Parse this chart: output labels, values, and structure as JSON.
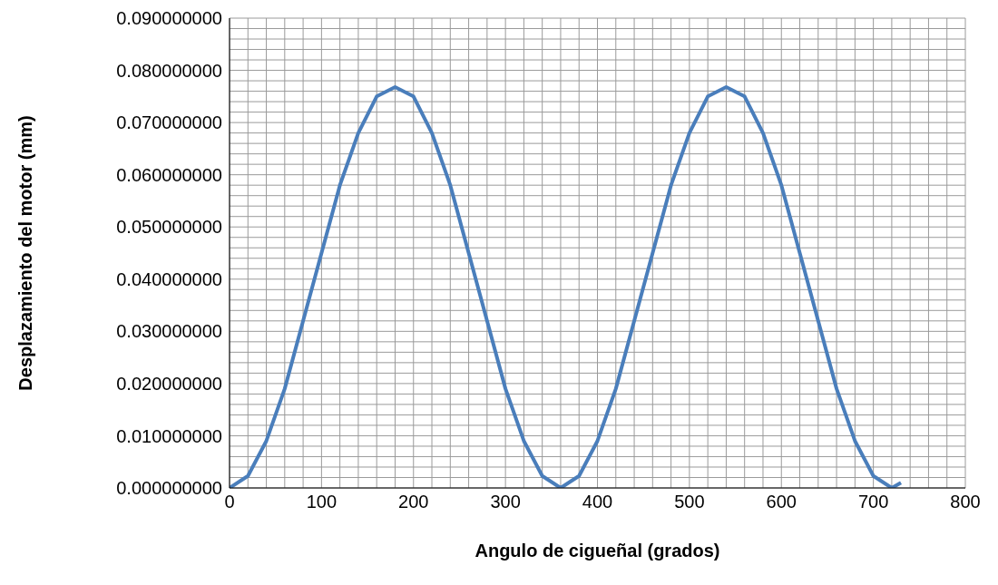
{
  "chart_data": {
    "type": "line",
    "xlabel": "Angulo de cigueñal (grados)",
    "ylabel": "Desplazamiento del motor (mm)",
    "x": [
      0,
      20,
      40,
      60,
      80,
      100,
      120,
      140,
      160,
      180,
      200,
      220,
      240,
      260,
      280,
      300,
      320,
      340,
      360,
      380,
      400,
      420,
      440,
      460,
      480,
      500,
      520,
      540,
      560,
      580,
      600,
      620,
      640,
      660,
      680,
      700,
      720,
      730
    ],
    "series": [
      {
        "color": "#4a7ebb",
        "values": [
          0,
          0.0023,
          0.009,
          0.019,
          0.032,
          0.045,
          0.058,
          0.068,
          0.075,
          0.0768,
          0.075,
          0.068,
          0.058,
          0.045,
          0.032,
          0.019,
          0.009,
          0.0023,
          0,
          0.0023,
          0.009,
          0.019,
          0.032,
          0.045,
          0.058,
          0.068,
          0.075,
          0.0768,
          0.075,
          0.068,
          0.058,
          0.045,
          0.032,
          0.019,
          0.009,
          0.0023,
          0,
          0.001
        ]
      }
    ],
    "xlim": [
      0,
      800
    ],
    "xticks": [
      0,
      {
        "value": 20,
        "label": null
      },
      {
        "value": 40,
        "label": null
      },
      {
        "value": 60,
        "label": null
      },
      {
        "value": 80,
        "label": null
      },
      100,
      {
        "value": 120,
        "label": null
      },
      {
        "value": 140,
        "label": null
      },
      {
        "value": 160,
        "label": null
      },
      {
        "value": 180,
        "label": null
      },
      200,
      {
        "value": 220,
        "label": null
      },
      {
        "value": 240,
        "label": null
      },
      {
        "value": 260,
        "label": null
      },
      {
        "value": 280,
        "label": null
      },
      300,
      {
        "value": 320,
        "label": null
      },
      {
        "value": 340,
        "label": null
      },
      {
        "value": 360,
        "label": null
      },
      {
        "value": 380,
        "label": null
      },
      400,
      {
        "value": 420,
        "label": null
      },
      {
        "value": 440,
        "label": null
      },
      {
        "value": 460,
        "label": null
      },
      {
        "value": 480,
        "label": null
      },
      500,
      {
        "value": 520,
        "label": null
      },
      {
        "value": 540,
        "label": null
      },
      {
        "value": 560,
        "label": null
      },
      {
        "value": 580,
        "label": null
      },
      600,
      {
        "value": 620,
        "label": null
      },
      {
        "value": 640,
        "label": null
      },
      {
        "value": 660,
        "label": null
      },
      {
        "value": 680,
        "label": null
      },
      700,
      {
        "value": 720,
        "label": null
      },
      {
        "value": 740,
        "label": null
      },
      {
        "value": 760,
        "label": null
      },
      {
        "value": 780,
        "label": null
      },
      800
    ],
    "ylim": [
      0,
      0.09
    ],
    "yticks": [
      {
        "value": 0,
        "label": "0.000000000"
      },
      {
        "value": 0.002,
        "label": null
      },
      {
        "value": 0.004,
        "label": null
      },
      {
        "value": 0.006,
        "label": null
      },
      {
        "value": 0.008,
        "label": null
      },
      {
        "value": 0.01,
        "label": "0.010000000"
      },
      {
        "value": 0.012,
        "label": null
      },
      {
        "value": 0.014,
        "label": null
      },
      {
        "value": 0.016,
        "label": null
      },
      {
        "value": 0.018,
        "label": null
      },
      {
        "value": 0.02,
        "label": "0.020000000"
      },
      {
        "value": 0.022,
        "label": null
      },
      {
        "value": 0.024,
        "label": null
      },
      {
        "value": 0.026,
        "label": null
      },
      {
        "value": 0.028,
        "label": null
      },
      {
        "value": 0.03,
        "label": "0.030000000"
      },
      {
        "value": 0.032,
        "label": null
      },
      {
        "value": 0.034,
        "label": null
      },
      {
        "value": 0.036,
        "label": null
      },
      {
        "value": 0.038,
        "label": null
      },
      {
        "value": 0.04,
        "label": "0.040000000"
      },
      {
        "value": 0.042,
        "label": null
      },
      {
        "value": 0.044,
        "label": null
      },
      {
        "value": 0.046,
        "label": null
      },
      {
        "value": 0.048,
        "label": null
      },
      {
        "value": 0.05,
        "label": "0.050000000"
      },
      {
        "value": 0.052,
        "label": null
      },
      {
        "value": 0.054,
        "label": null
      },
      {
        "value": 0.056,
        "label": null
      },
      {
        "value": 0.058,
        "label": null
      },
      {
        "value": 0.06,
        "label": "0.060000000"
      },
      {
        "value": 0.062,
        "label": null
      },
      {
        "value": 0.064,
        "label": null
      },
      {
        "value": 0.066,
        "label": null
      },
      {
        "value": 0.068,
        "label": null
      },
      {
        "value": 0.07,
        "label": "0.070000000"
      },
      {
        "value": 0.072,
        "label": null
      },
      {
        "value": 0.074,
        "label": null
      },
      {
        "value": 0.076,
        "label": null
      },
      {
        "value": 0.078,
        "label": null
      },
      {
        "value": 0.08,
        "label": "0.080000000"
      },
      {
        "value": 0.082,
        "label": null
      },
      {
        "value": 0.084,
        "label": null
      },
      {
        "value": 0.086,
        "label": null
      },
      {
        "value": 0.088,
        "label": null
      },
      {
        "value": 0.09,
        "label": "0.090000000"
      }
    ],
    "grid": true,
    "marker": "none",
    "line_style": "solid"
  }
}
